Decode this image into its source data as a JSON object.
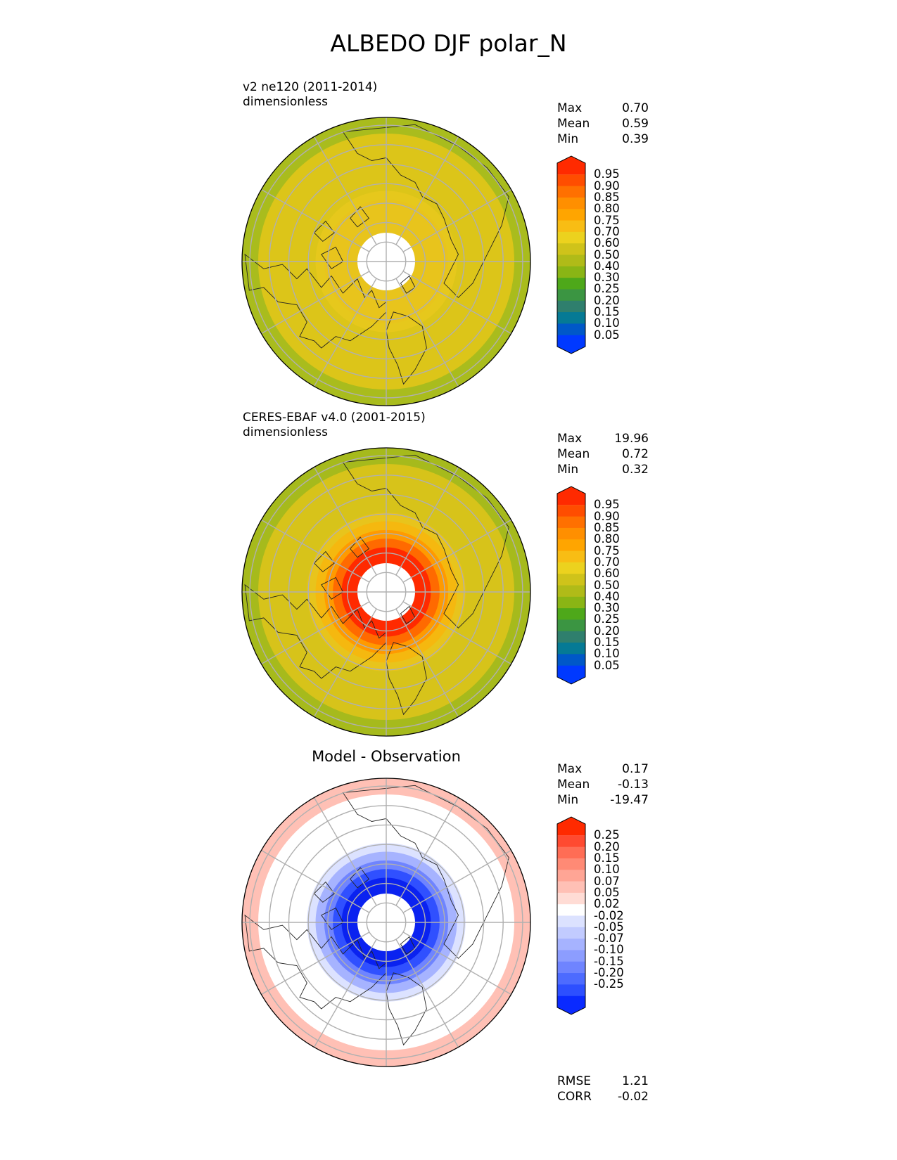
{
  "page_title": "ALBEDO DJF polar_N",
  "panels": [
    {
      "id": "test",
      "title": "",
      "subtitle_line1": "v2 ne120 (2011-2014)",
      "subtitle_line2": "dimensionless",
      "stats": [
        {
          "label": "Max",
          "value": "0.70"
        },
        {
          "label": "Mean",
          "value": "0.59"
        },
        {
          "label": "Min",
          "value": "0.39"
        }
      ],
      "colorbar": {
        "ticks": [
          "0.95",
          "0.90",
          "0.85",
          "0.80",
          "0.75",
          "0.70",
          "0.60",
          "0.50",
          "0.40",
          "0.30",
          "0.25",
          "0.20",
          "0.15",
          "0.10",
          "0.05"
        ],
        "colors": [
          "#ff2a00",
          "#ff4d00",
          "#ff7000",
          "#ff8f00",
          "#ffa500",
          "#f8bd14",
          "#ecd21e",
          "#cfc31a",
          "#b0bb18",
          "#8ab515",
          "#4ea81a",
          "#3b9542",
          "#2f7f6d",
          "#057a95",
          "#0058c8",
          "#0039ff"
        ]
      },
      "field": {
        "fill": "#dcc519",
        "ring_colors": [
          "#dcc519",
          "#e6c81c",
          "#e8c41c"
        ],
        "outer_band": "#a9bc1d"
      }
    },
    {
      "id": "reference",
      "title": "",
      "subtitle_line1": "CERES-EBAF v4.0 (2001-2015)",
      "subtitle_line2": "dimensionless",
      "stats": [
        {
          "label": "Max",
          "value": "19.96"
        },
        {
          "label": "Mean",
          "value": "0.72"
        },
        {
          "label": "Min",
          "value": "0.32"
        }
      ],
      "colorbar": {
        "ticks": [
          "0.95",
          "0.90",
          "0.85",
          "0.80",
          "0.75",
          "0.70",
          "0.60",
          "0.50",
          "0.40",
          "0.30",
          "0.25",
          "0.20",
          "0.15",
          "0.10",
          "0.05"
        ],
        "colors": [
          "#ff2a00",
          "#ff4d00",
          "#ff7000",
          "#ff8f00",
          "#ffa500",
          "#f8bd14",
          "#ecd21e",
          "#cfc31a",
          "#b0bb18",
          "#8ab515",
          "#4ea81a",
          "#3b9542",
          "#2f7f6d",
          "#057a95",
          "#0058c8",
          "#0039ff"
        ]
      },
      "field": {
        "fill": "#d7c31a",
        "ring_colors": [
          "#e8c41c",
          "#f5b80f",
          "#ff9a00",
          "#ff6a00",
          "#ff2a00"
        ],
        "outer_band": "#a6ba1c"
      }
    },
    {
      "id": "diff",
      "title": "Model - Observation",
      "subtitle_line1": "",
      "subtitle_line2": "",
      "stats": [
        {
          "label": "Max",
          "value": "0.17"
        },
        {
          "label": "Mean",
          "value": "-0.13"
        },
        {
          "label": "Min",
          "value": "-19.47"
        }
      ],
      "extra_stats": [
        {
          "label": "RMSE",
          "value": "1.21"
        },
        {
          "label": "CORR",
          "value": "-0.02"
        }
      ],
      "colorbar": {
        "ticks": [
          "0.25",
          "0.20",
          "0.15",
          "0.10",
          "0.07",
          "0.05",
          "0.02",
          "-0.02",
          "-0.05",
          "-0.07",
          "-0.10",
          "-0.15",
          "-0.20",
          "-0.25"
        ],
        "colors": [
          "#ff2a00",
          "#ff4a30",
          "#ff6d55",
          "#ff8a75",
          "#ffa595",
          "#ffc0b5",
          "#ffdcd5",
          "#ffffff",
          "#dce2ff",
          "#c2cbff",
          "#a6b3ff",
          "#8c9dff",
          "#6f84ff",
          "#4d6bff",
          "#2d4fff",
          "#0a2aff"
        ]
      },
      "field": {
        "fill": "#ffffff",
        "ring_colors": [
          "#dce2ff",
          "#a6b3ff",
          "#6f84ff",
          "#3050ff",
          "#0a22f0"
        ],
        "outer_band": "#ffc0b5"
      }
    }
  ]
}
